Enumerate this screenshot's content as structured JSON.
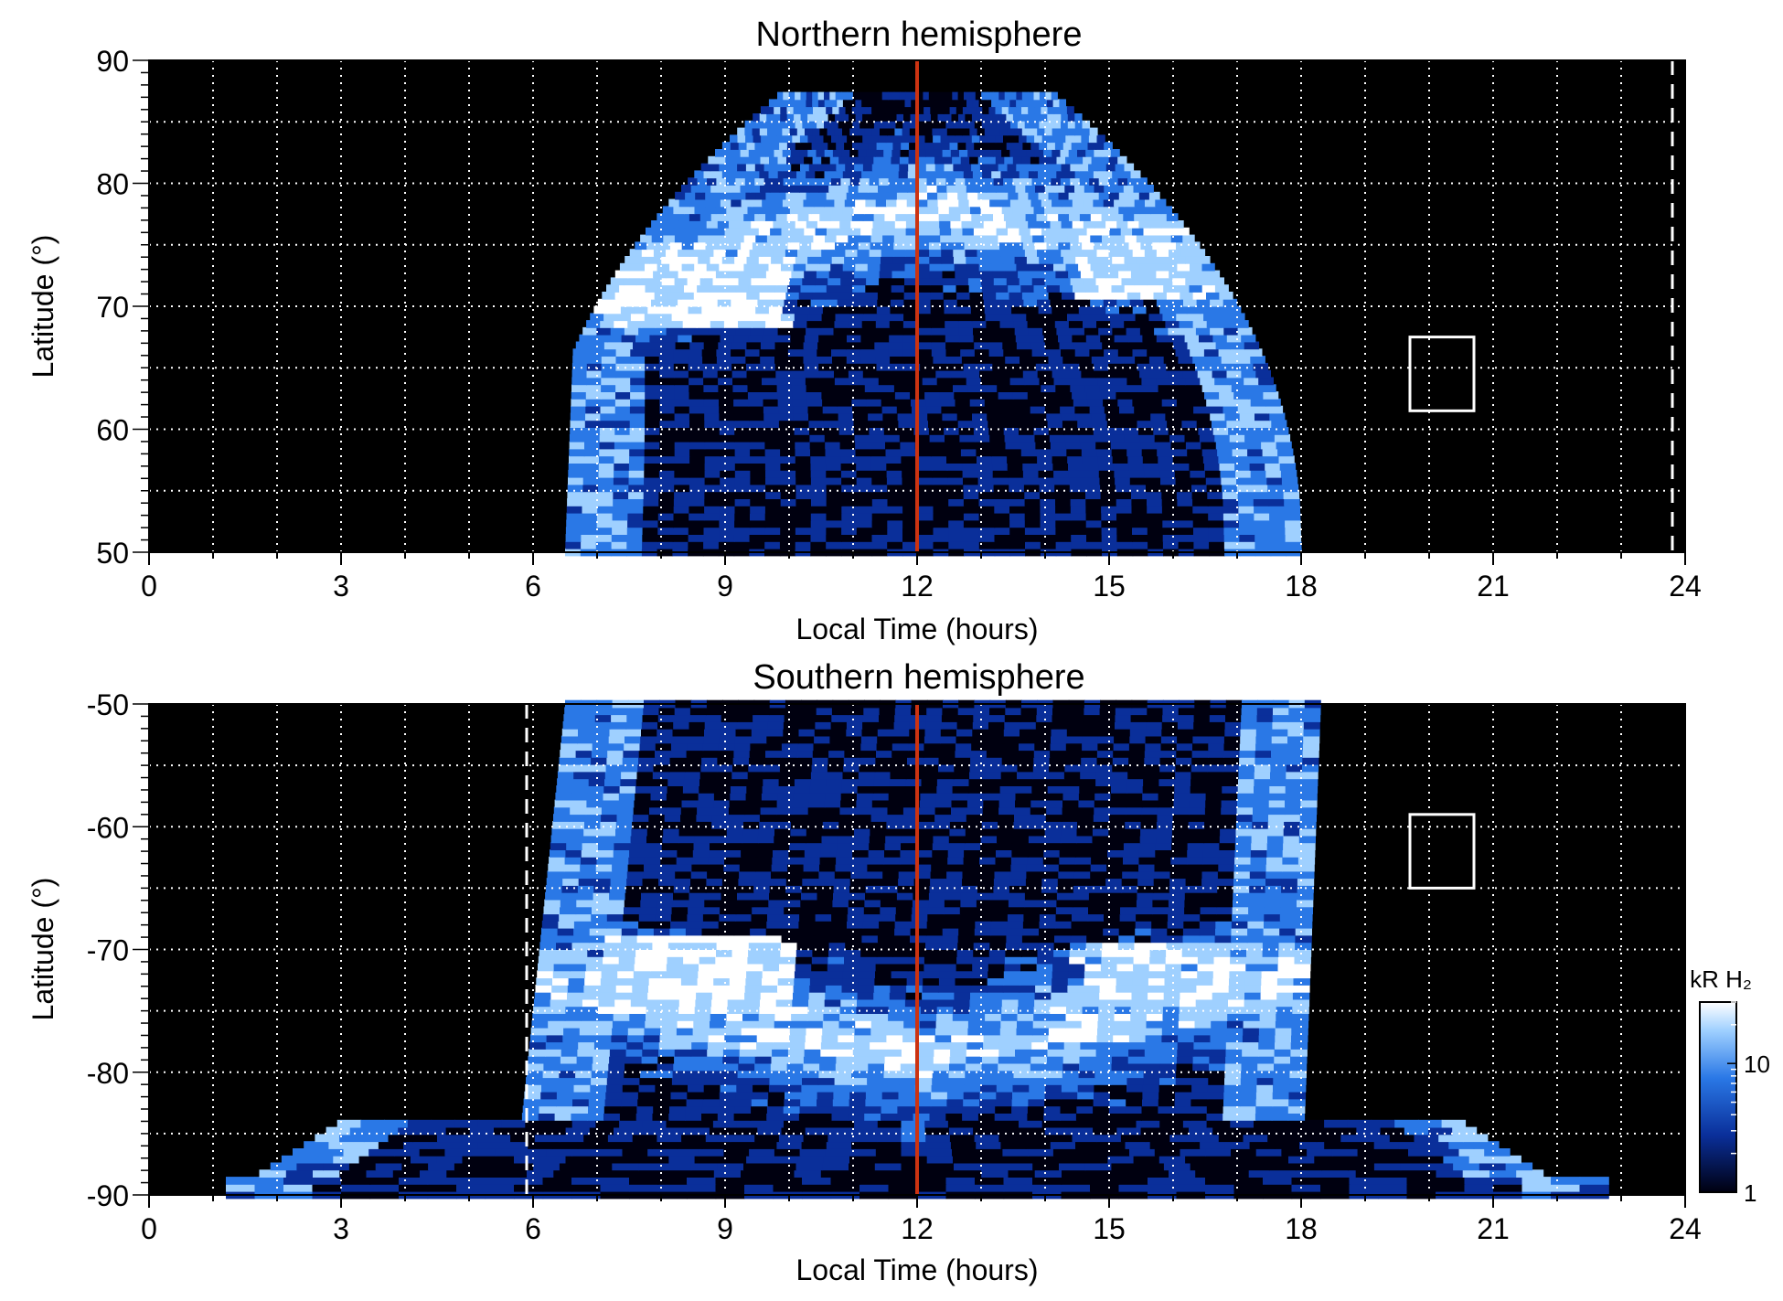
{
  "chart_data": [
    {
      "type": "heatmap",
      "title": "Northern hemisphere",
      "xlabel": "Local Time (hours)",
      "ylabel": "Latitude (°)",
      "xlim": [
        0,
        24
      ],
      "ylim": [
        50,
        90
      ],
      "x_ticks": [
        0,
        3,
        6,
        9,
        12,
        15,
        18,
        21,
        24
      ],
      "y_ticks": [
        50,
        60,
        70,
        80,
        90
      ],
      "grid": true,
      "noon_line_x": 12,
      "noon_line_color": "#cc3311",
      "dashed_line_x": 23.8,
      "box_region": {
        "x": [
          19.7,
          20.7
        ],
        "y": [
          61.5,
          67.5
        ]
      },
      "coverage": {
        "lt_min": 6.5,
        "lt_max": 18.0
      },
      "auroral_oval": {
        "latitude_dawn": 71,
        "latitude_noon": 78,
        "latitude_dusk": 73
      }
    },
    {
      "type": "heatmap",
      "title": "Southern hemisphere",
      "xlabel": "Local Time (hours)",
      "ylabel": "Latitude (°)",
      "xlim": [
        0,
        24
      ],
      "ylim": [
        -90,
        -50
      ],
      "x_ticks": [
        0,
        3,
        6,
        9,
        12,
        15,
        18,
        21,
        24
      ],
      "y_ticks": [
        -50,
        -60,
        -70,
        -80,
        -90
      ],
      "grid": true,
      "noon_line_x": 12,
      "noon_line_color": "#cc3311",
      "dashed_line_x": 5.9,
      "box_region": {
        "x": [
          19.7,
          20.7
        ],
        "y": [
          -65,
          -59
        ]
      },
      "coverage": {
        "lt_min": 6.0,
        "lt_max": 18.3
      },
      "auroral_oval": {
        "latitude_dawn": -72,
        "latitude_noon": -79,
        "latitude_dusk": -72
      }
    }
  ],
  "colorbar": {
    "label": "kR H₂",
    "tick_labels": [
      "1",
      "10"
    ],
    "scale": "log",
    "colors": [
      "#000010",
      "#0a2f9a",
      "#2a78e6",
      "#9fd0ff",
      "#ffffff"
    ]
  }
}
